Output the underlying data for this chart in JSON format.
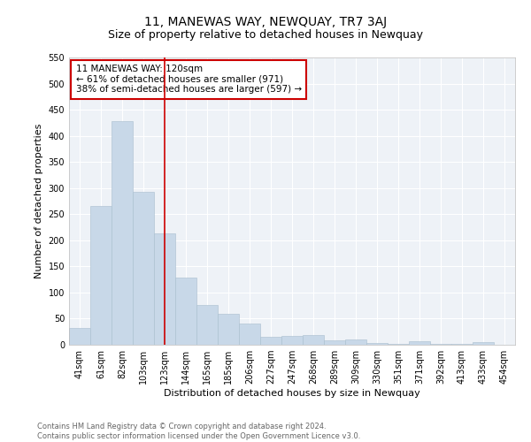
{
  "title": "11, MANEWAS WAY, NEWQUAY, TR7 3AJ",
  "subtitle": "Size of property relative to detached houses in Newquay",
  "xlabel": "Distribution of detached houses by size in Newquay",
  "ylabel": "Number of detached properties",
  "categories": [
    "41sqm",
    "61sqm",
    "82sqm",
    "103sqm",
    "123sqm",
    "144sqm",
    "165sqm",
    "185sqm",
    "206sqm",
    "227sqm",
    "247sqm",
    "268sqm",
    "289sqm",
    "309sqm",
    "330sqm",
    "351sqm",
    "371sqm",
    "392sqm",
    "413sqm",
    "433sqm",
    "454sqm"
  ],
  "values": [
    32,
    265,
    428,
    293,
    214,
    129,
    76,
    60,
    40,
    15,
    17,
    18,
    9,
    10,
    4,
    2,
    6,
    2,
    2,
    5,
    0
  ],
  "bar_color": "#c8d8e8",
  "bar_edge_color": "#a8bece",
  "vline_x_index": 4,
  "vline_color": "#cc0000",
  "annotation_line1": "11 MANEWAS WAY: 120sqm",
  "annotation_line2": "← 61% of detached houses are smaller (971)",
  "annotation_line3": "38% of semi-detached houses are larger (597) →",
  "annotation_box_facecolor": "#ffffff",
  "annotation_box_edgecolor": "#cc0000",
  "ylim": [
    0,
    550
  ],
  "yticks": [
    0,
    50,
    100,
    150,
    200,
    250,
    300,
    350,
    400,
    450,
    500,
    550
  ],
  "background_color": "#eef2f7",
  "footer_line1": "Contains HM Land Registry data © Crown copyright and database right 2024.",
  "footer_line2": "Contains public sector information licensed under the Open Government Licence v3.0.",
  "title_fontsize": 10,
  "subtitle_fontsize": 9,
  "xlabel_fontsize": 8,
  "ylabel_fontsize": 8,
  "tick_fontsize": 7,
  "annotation_fontsize": 7.5,
  "footer_fontsize": 6
}
